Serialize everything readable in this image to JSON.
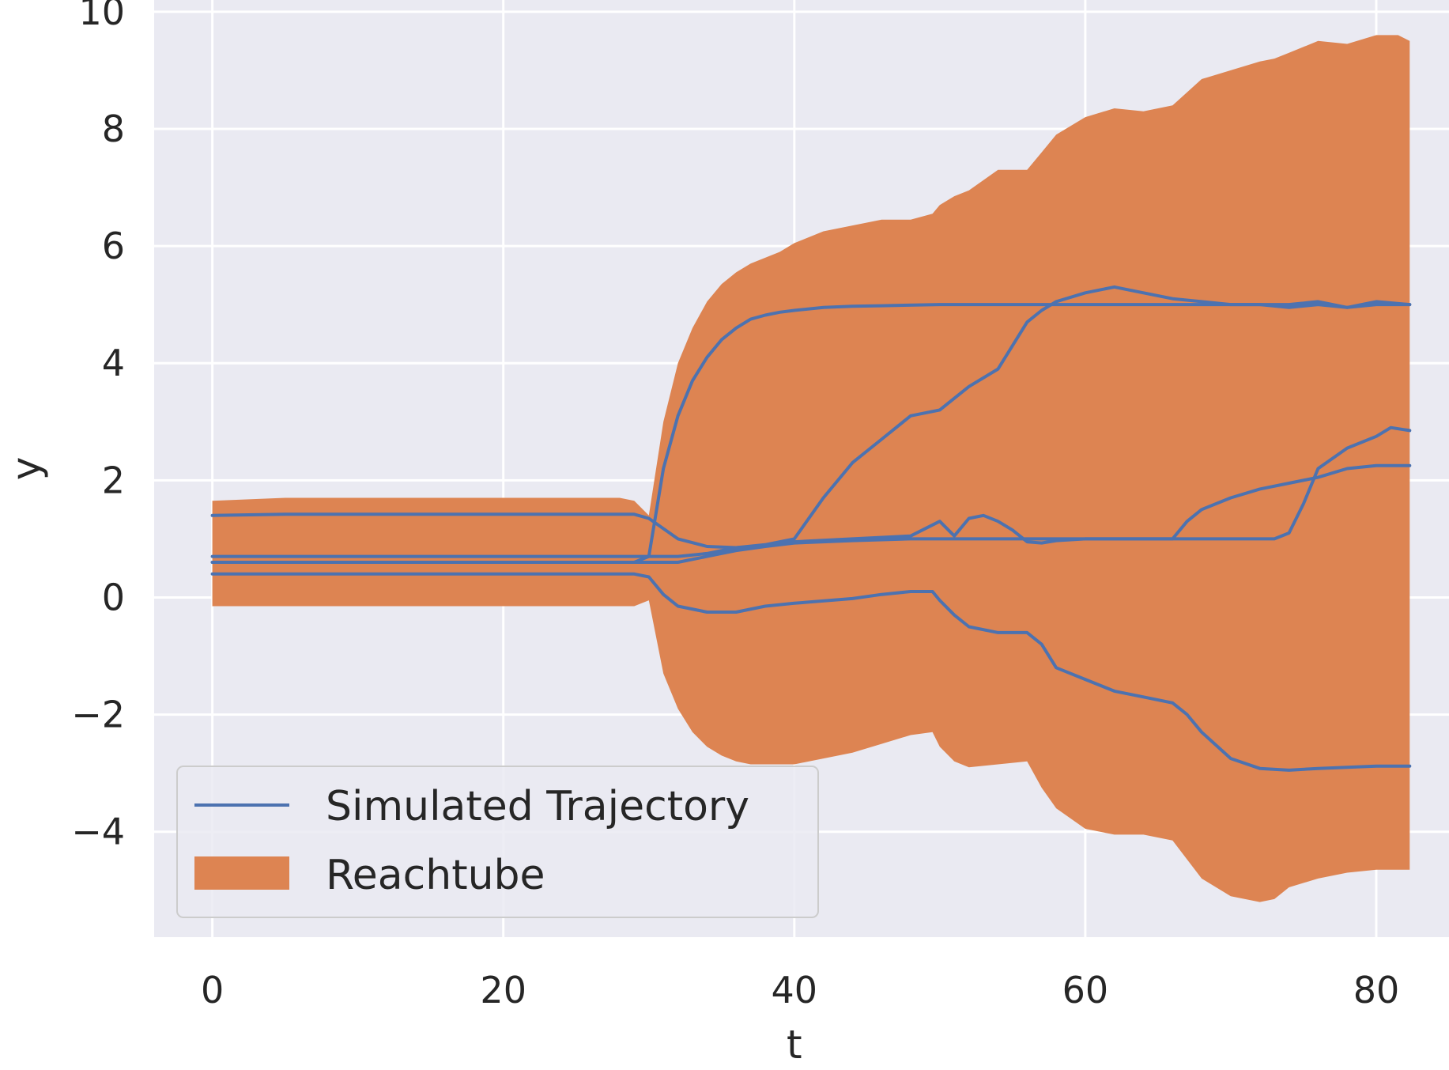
{
  "chart_data": {
    "type": "line",
    "title": "",
    "xlabel": "t",
    "ylabel": "y",
    "xlim": [
      -4,
      85
    ],
    "ylim": [
      -5.8,
      10.2
    ],
    "xticks": [
      "0",
      "20",
      "40",
      "60",
      "80"
    ],
    "xtick_values": [
      0,
      20,
      40,
      60,
      80
    ],
    "yticks": [
      "−4",
      "−2",
      "0",
      "2",
      "4",
      "6",
      "8",
      "10"
    ],
    "ytick_values": [
      -4,
      -2,
      0,
      2,
      4,
      6,
      8,
      10
    ],
    "grid": true,
    "legend": {
      "placement": "lower-left",
      "entries": [
        {
          "label": "Simulated Trajectory",
          "kind": "line",
          "color": "#4c72b0"
        },
        {
          "label": "Reachtube",
          "kind": "patch",
          "color": "#dd8452"
        }
      ]
    },
    "colors": {
      "background": "#eaeaf2",
      "grid": "#ffffff",
      "trajectory": "#4c72b0",
      "reachtube": "#dd8452"
    },
    "reachtube": {
      "t": [
        0,
        5,
        10,
        20,
        28,
        29,
        30,
        31,
        32,
        33,
        34,
        35,
        36,
        37,
        38,
        39,
        40,
        42,
        44,
        46,
        48,
        49.5,
        50,
        51,
        52,
        54,
        56,
        57,
        58,
        60,
        62,
        64,
        66,
        68,
        70,
        72,
        73,
        74,
        76,
        78,
        80,
        81.5,
        82.3
      ],
      "upper": [
        1.65,
        1.7,
        1.7,
        1.7,
        1.7,
        1.65,
        1.4,
        3.0,
        4.0,
        4.6,
        5.05,
        5.35,
        5.55,
        5.7,
        5.8,
        5.9,
        6.05,
        6.25,
        6.35,
        6.45,
        6.45,
        6.55,
        6.7,
        6.85,
        6.95,
        7.3,
        7.3,
        7.6,
        7.9,
        8.2,
        8.35,
        8.3,
        8.4,
        8.85,
        9.0,
        9.15,
        9.2,
        9.3,
        9.5,
        9.45,
        9.6,
        9.6,
        9.5
      ],
      "lower": [
        -0.15,
        -0.15,
        -0.15,
        -0.15,
        -0.15,
        -0.15,
        -0.05,
        -1.3,
        -1.9,
        -2.3,
        -2.55,
        -2.7,
        -2.8,
        -2.85,
        -2.85,
        -2.85,
        -2.85,
        -2.75,
        -2.65,
        -2.5,
        -2.35,
        -2.3,
        -2.55,
        -2.8,
        -2.9,
        -2.85,
        -2.8,
        -3.25,
        -3.6,
        -3.95,
        -4.05,
        -4.05,
        -4.15,
        -4.8,
        -5.1,
        -5.2,
        -5.15,
        -4.95,
        -4.8,
        -4.7,
        -4.65,
        -4.65,
        -4.65
      ]
    },
    "series": [
      {
        "t": [
          0,
          5,
          10,
          20,
          28,
          29,
          30,
          31,
          32,
          33,
          34,
          35,
          36,
          37,
          38,
          39,
          40,
          42,
          44,
          46,
          50,
          60,
          70,
          72,
          74,
          76,
          78,
          80,
          82.3
        ],
        "values": [
          0.6,
          0.6,
          0.6,
          0.6,
          0.6,
          0.6,
          0.7,
          2.2,
          3.1,
          3.7,
          4.1,
          4.4,
          4.6,
          4.75,
          4.82,
          4.87,
          4.9,
          4.95,
          4.97,
          4.98,
          5.0,
          5.0,
          5.0,
          5.0,
          4.95,
          5.0,
          4.95,
          5.0,
          5.0
        ]
      },
      {
        "t": [
          0,
          5,
          10,
          20,
          28,
          29,
          30,
          32,
          34,
          36,
          38,
          40,
          42,
          44,
          46,
          48,
          50,
          52,
          54,
          56,
          57,
          58,
          60,
          62,
          64,
          66,
          70,
          74,
          76,
          78,
          80,
          82.3
        ],
        "values": [
          0.7,
          0.7,
          0.7,
          0.7,
          0.7,
          0.7,
          0.7,
          0.7,
          0.75,
          0.85,
          0.9,
          1.0,
          1.7,
          2.3,
          2.7,
          3.1,
          3.2,
          3.6,
          3.9,
          4.7,
          4.9,
          5.05,
          5.2,
          5.3,
          5.2,
          5.1,
          5.0,
          5.0,
          5.05,
          4.95,
          5.05,
          5.0
        ]
      },
      {
        "t": [
          0,
          5,
          10,
          20,
          28,
          29,
          30,
          32,
          34,
          36,
          38,
          40,
          44,
          48,
          50,
          51,
          52,
          53,
          54,
          55,
          56,
          57,
          58,
          60,
          66,
          67,
          68,
          70,
          72,
          74,
          76,
          78,
          80,
          82.3
        ],
        "values": [
          1.4,
          1.42,
          1.42,
          1.42,
          1.42,
          1.42,
          1.35,
          1.0,
          0.87,
          0.85,
          0.88,
          0.95,
          1.0,
          1.05,
          1.3,
          1.05,
          1.35,
          1.4,
          1.3,
          1.15,
          0.95,
          0.93,
          0.97,
          1.0,
          1.0,
          1.3,
          1.5,
          1.7,
          1.85,
          1.95,
          2.05,
          2.2,
          2.25,
          2.25
        ]
      },
      {
        "t": [
          0,
          5,
          10,
          20,
          28,
          29,
          30,
          32,
          34,
          36,
          38,
          40,
          44,
          48,
          50,
          60,
          66,
          70,
          73,
          74,
          75,
          76,
          78,
          80,
          81,
          82.3
        ],
        "values": [
          0.6,
          0.6,
          0.6,
          0.6,
          0.6,
          0.6,
          0.6,
          0.6,
          0.7,
          0.8,
          0.87,
          0.93,
          0.97,
          1.0,
          1.0,
          1.0,
          1.0,
          1.0,
          1.0,
          1.1,
          1.6,
          2.2,
          2.55,
          2.75,
          2.9,
          2.85
        ]
      },
      {
        "t": [
          0,
          5,
          10,
          20,
          28,
          29,
          30,
          31,
          32,
          34,
          36,
          38,
          40,
          44,
          46,
          48,
          49.5,
          50,
          51,
          52,
          54,
          56,
          57,
          58,
          60,
          62,
          64,
          66,
          67,
          68,
          70,
          72,
          74,
          76,
          78,
          80,
          82.3
        ],
        "values": [
          0.4,
          0.4,
          0.4,
          0.4,
          0.4,
          0.4,
          0.35,
          0.05,
          -0.15,
          -0.25,
          -0.25,
          -0.15,
          -0.1,
          -0.02,
          0.05,
          0.1,
          0.1,
          -0.05,
          -0.3,
          -0.5,
          -0.6,
          -0.6,
          -0.8,
          -1.2,
          -1.4,
          -1.6,
          -1.7,
          -1.8,
          -2.0,
          -2.3,
          -2.75,
          -2.92,
          -2.95,
          -2.92,
          -2.9,
          -2.88,
          -2.88
        ]
      }
    ]
  }
}
